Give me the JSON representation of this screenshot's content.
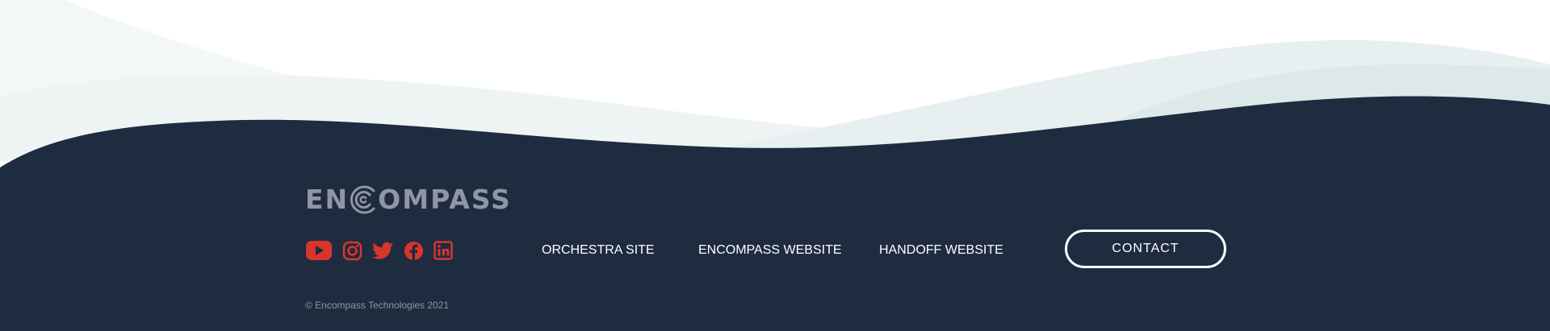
{
  "theme": {
    "footer_background": "#1f2b3f",
    "wave_light": "#eef3f4",
    "wave_teal": "#e2ebec",
    "icon_color": "#d9362b",
    "logo_color": "#8f96a3",
    "text_color": "#ffffff",
    "muted_text_color": "#8f96a3"
  },
  "logo": {
    "text_before": "EN",
    "text_after": "OMPASS",
    "mark": "concentric-c-logo-icon"
  },
  "social": [
    {
      "name": "YouTube",
      "icon": "youtube-icon"
    },
    {
      "name": "Instagram",
      "icon": "instagram-icon"
    },
    {
      "name": "Twitter",
      "icon": "twitter-icon"
    },
    {
      "name": "Facebook",
      "icon": "facebook-icon"
    },
    {
      "name": "LinkedIn",
      "icon": "linkedin-icon"
    }
  ],
  "nav": {
    "orchestra": "ORCHESTRA SITE",
    "encompass": "ENCOMPASS WEBSITE",
    "handoff": "HANDOFF WEBSITE"
  },
  "contact": {
    "label": "CONTACT"
  },
  "copyright": "© Encompass Technologies 2021"
}
